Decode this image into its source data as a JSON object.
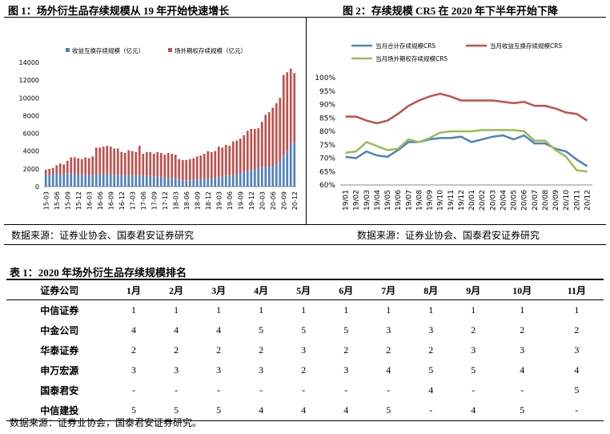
{
  "chart_data": [
    {
      "type": "bar",
      "stacked": true,
      "title": "图 1：场外衍生品存续规模从 19 年开始快速增长",
      "source": "数据来源：证券业协会、国泰君安证券研究",
      "categories": [
        "15-03",
        null,
        null,
        "15-06",
        null,
        null,
        "15-09",
        null,
        null,
        "15-12",
        null,
        null,
        "16-03",
        null,
        null,
        "16-06",
        null,
        null,
        "16-09",
        null,
        null,
        "16-12",
        null,
        null,
        "17-03",
        null,
        null,
        "17-06",
        null,
        null,
        "17-09",
        null,
        null,
        "17-12",
        null,
        null,
        "18-03",
        null,
        null,
        "18-06",
        null,
        null,
        "18-09",
        null,
        null,
        "18-12",
        null,
        null,
        "19-03",
        null,
        null,
        "19-06",
        null,
        null,
        "19-09",
        null,
        null,
        "19-12",
        null,
        null,
        "20-03",
        null,
        null,
        "20-06",
        null,
        null,
        "20-09",
        null,
        null,
        "20-12"
      ],
      "series": [
        {
          "name": "收益互换存续规模（亿元）",
          "color": "#4f81bd",
          "values": [
            1400,
            1300,
            1500,
            1500,
            1400,
            1300,
            1500,
            1500,
            1400,
            1400,
            1300,
            1400,
            1300,
            1300,
            1400,
            1400,
            1400,
            1400,
            1400,
            1300,
            1300,
            1300,
            1300,
            1300,
            1300,
            1200,
            1300,
            1200,
            1200,
            1200,
            1100,
            1100,
            1100,
            1000,
            1000,
            1000,
            900,
            800,
            700,
            700,
            700,
            800,
            800,
            800,
            900,
            900,
            900,
            1000,
            1100,
            1100,
            1200,
            1200,
            1300,
            1400,
            1500,
            1700,
            1800,
            1900,
            1900,
            2000,
            2100,
            2200,
            2300,
            2300,
            2500,
            2800,
            3500,
            4000,
            4800,
            5000
          ]
        },
        {
          "name": "场外期权存续规模（亿元）",
          "color": "#c0504d",
          "values": [
            500,
            700,
            600,
            900,
            1200,
            1200,
            1400,
            1800,
            1900,
            1800,
            1800,
            1900,
            1900,
            2100,
            3000,
            3000,
            3100,
            3200,
            3100,
            3000,
            3000,
            2600,
            2500,
            2800,
            2700,
            2700,
            3300,
            2500,
            2700,
            2700,
            2600,
            2800,
            2700,
            2600,
            2800,
            2700,
            2700,
            2300,
            2300,
            2300,
            2400,
            2400,
            2600,
            2700,
            2800,
            3100,
            3000,
            3000,
            3400,
            3300,
            3500,
            3400,
            3800,
            3800,
            3900,
            4100,
            4500,
            4600,
            4600,
            4600,
            5200,
            5900,
            6100,
            6600,
            6900,
            7200,
            9100,
            8900,
            8500,
            7800
          ]
        }
      ],
      "ylim": [
        0,
        14000
      ],
      "yticks": [
        0,
        2000,
        4000,
        6000,
        8000,
        10000,
        12000,
        14000
      ],
      "grid": false
    },
    {
      "type": "line",
      "title": "图 2：存续规模 CR5 在 2020 年下半年开始下降",
      "source": "数据来源：证券业协会、国泰君安证券研究",
      "categories": [
        "19/01",
        "19/02",
        "19/03",
        "19/04",
        "19/05",
        "19/06",
        "19/07",
        "19/08",
        "19/09",
        "19/10",
        "19/11",
        "19/12",
        "20/01",
        "20/02",
        "20/03",
        "20/04",
        "20/05",
        "20/06",
        "20/07",
        "20/08",
        "20/09",
        "20/10",
        "20/11",
        "20/12"
      ],
      "series": [
        {
          "name": "当月合计存续规模CR5",
          "color": "#4f81bd",
          "values": [
            70.5,
            70,
            72.5,
            71,
            70.5,
            73,
            76,
            76,
            77,
            77.5,
            77.5,
            78,
            76,
            77,
            78,
            78.5,
            77,
            78.5,
            75.5,
            75.5,
            73.5,
            72.5,
            69.5,
            67
          ]
        },
        {
          "name": "当月收益互换存续规模CR5",
          "color": "#c0504d",
          "values": [
            85.5,
            85.5,
            84,
            83,
            84,
            86.5,
            89.5,
            91.5,
            93,
            94,
            93,
            91.5,
            91.5,
            91.5,
            91.5,
            91,
            90.5,
            91,
            89.5,
            89.5,
            88.5,
            87,
            86.5,
            84
          ]
        },
        {
          "name": "当月场外期权存续规模CR5",
          "color": "#9bbb59",
          "values": [
            72,
            72.5,
            76,
            74.5,
            73,
            73.5,
            77,
            76,
            77.5,
            79.5,
            80,
            80,
            80,
            80.5,
            80.5,
            80.5,
            80.5,
            80,
            76.5,
            76.5,
            73,
            70.5,
            65.5,
            65
          ]
        }
      ],
      "ylim": [
        60,
        100
      ],
      "yticks": [
        {
          "value": 60,
          "label": "60%"
        },
        {
          "value": 65,
          "label": "65%"
        },
        {
          "value": 70,
          "label": "70%"
        },
        {
          "value": 75,
          "label": "75%"
        },
        {
          "value": 80,
          "label": "80%"
        },
        {
          "value": 85,
          "label": "85%"
        },
        {
          "value": 90,
          "label": "90%"
        },
        {
          "value": 95,
          "label": "95%"
        },
        {
          "value": 100,
          "label": "100%"
        }
      ],
      "grid": false
    }
  ],
  "table": {
    "caption": "表 1：2020 年场外衍生品存续规模排名",
    "header": [
      "证券公司",
      "1月",
      "2月",
      "3月",
      "4月",
      "5月",
      "6月",
      "7月",
      "8月",
      "9月",
      "10月",
      "11月"
    ],
    "rows": [
      [
        "中信证券",
        1,
        1,
        1,
        1,
        1,
        1,
        1,
        1,
        1,
        1,
        1
      ],
      [
        "中金公司",
        4,
        4,
        4,
        5,
        5,
        5,
        3,
        3,
        2,
        2,
        2
      ],
      [
        "华泰证券",
        2,
        2,
        2,
        2,
        3,
        2,
        2,
        2,
        3,
        3,
        3
      ],
      [
        "申万宏源",
        3,
        3,
        3,
        3,
        2,
        3,
        4,
        5,
        5,
        4,
        4
      ],
      [
        "国泰君安",
        "-",
        "-",
        "-",
        "-",
        "-",
        "-",
        "-",
        4,
        "-",
        "-",
        5
      ],
      [
        "中信建投",
        5,
        5,
        5,
        4,
        4,
        4,
        5,
        "-",
        4,
        5,
        "-"
      ]
    ],
    "source": "数据来源：证券业协会，国泰君安证券研究。"
  }
}
